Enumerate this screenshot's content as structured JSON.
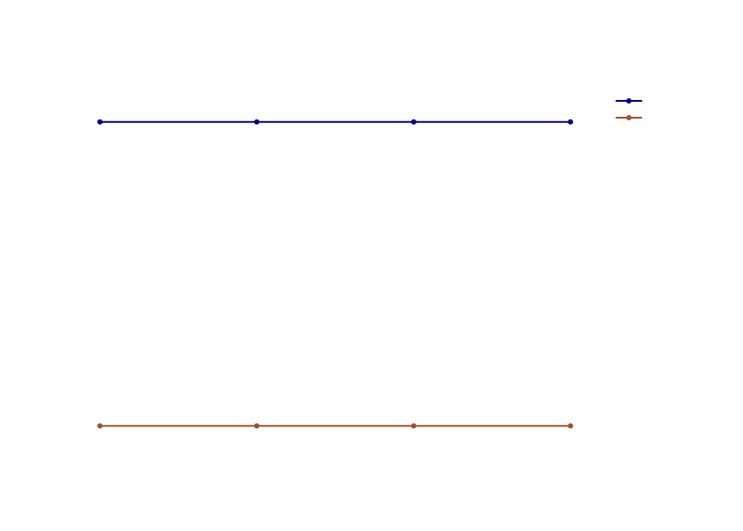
{
  "chart_data": {
    "type": "line",
    "title": "",
    "xlabel": "",
    "ylabel": "",
    "x": [
      1,
      2,
      3,
      4
    ],
    "ylim": [
      0,
      1
    ],
    "grid": false,
    "legend": "top-right",
    "series": [
      {
        "name": "",
        "values": [
          0.86,
          0.86,
          0.86,
          0.86
        ],
        "color": "#00008b",
        "marker": "circle"
      },
      {
        "name": "",
        "values": [
          0.14,
          0.14,
          0.14,
          0.14
        ],
        "color": "#a0522d",
        "marker": "circle"
      }
    ]
  }
}
